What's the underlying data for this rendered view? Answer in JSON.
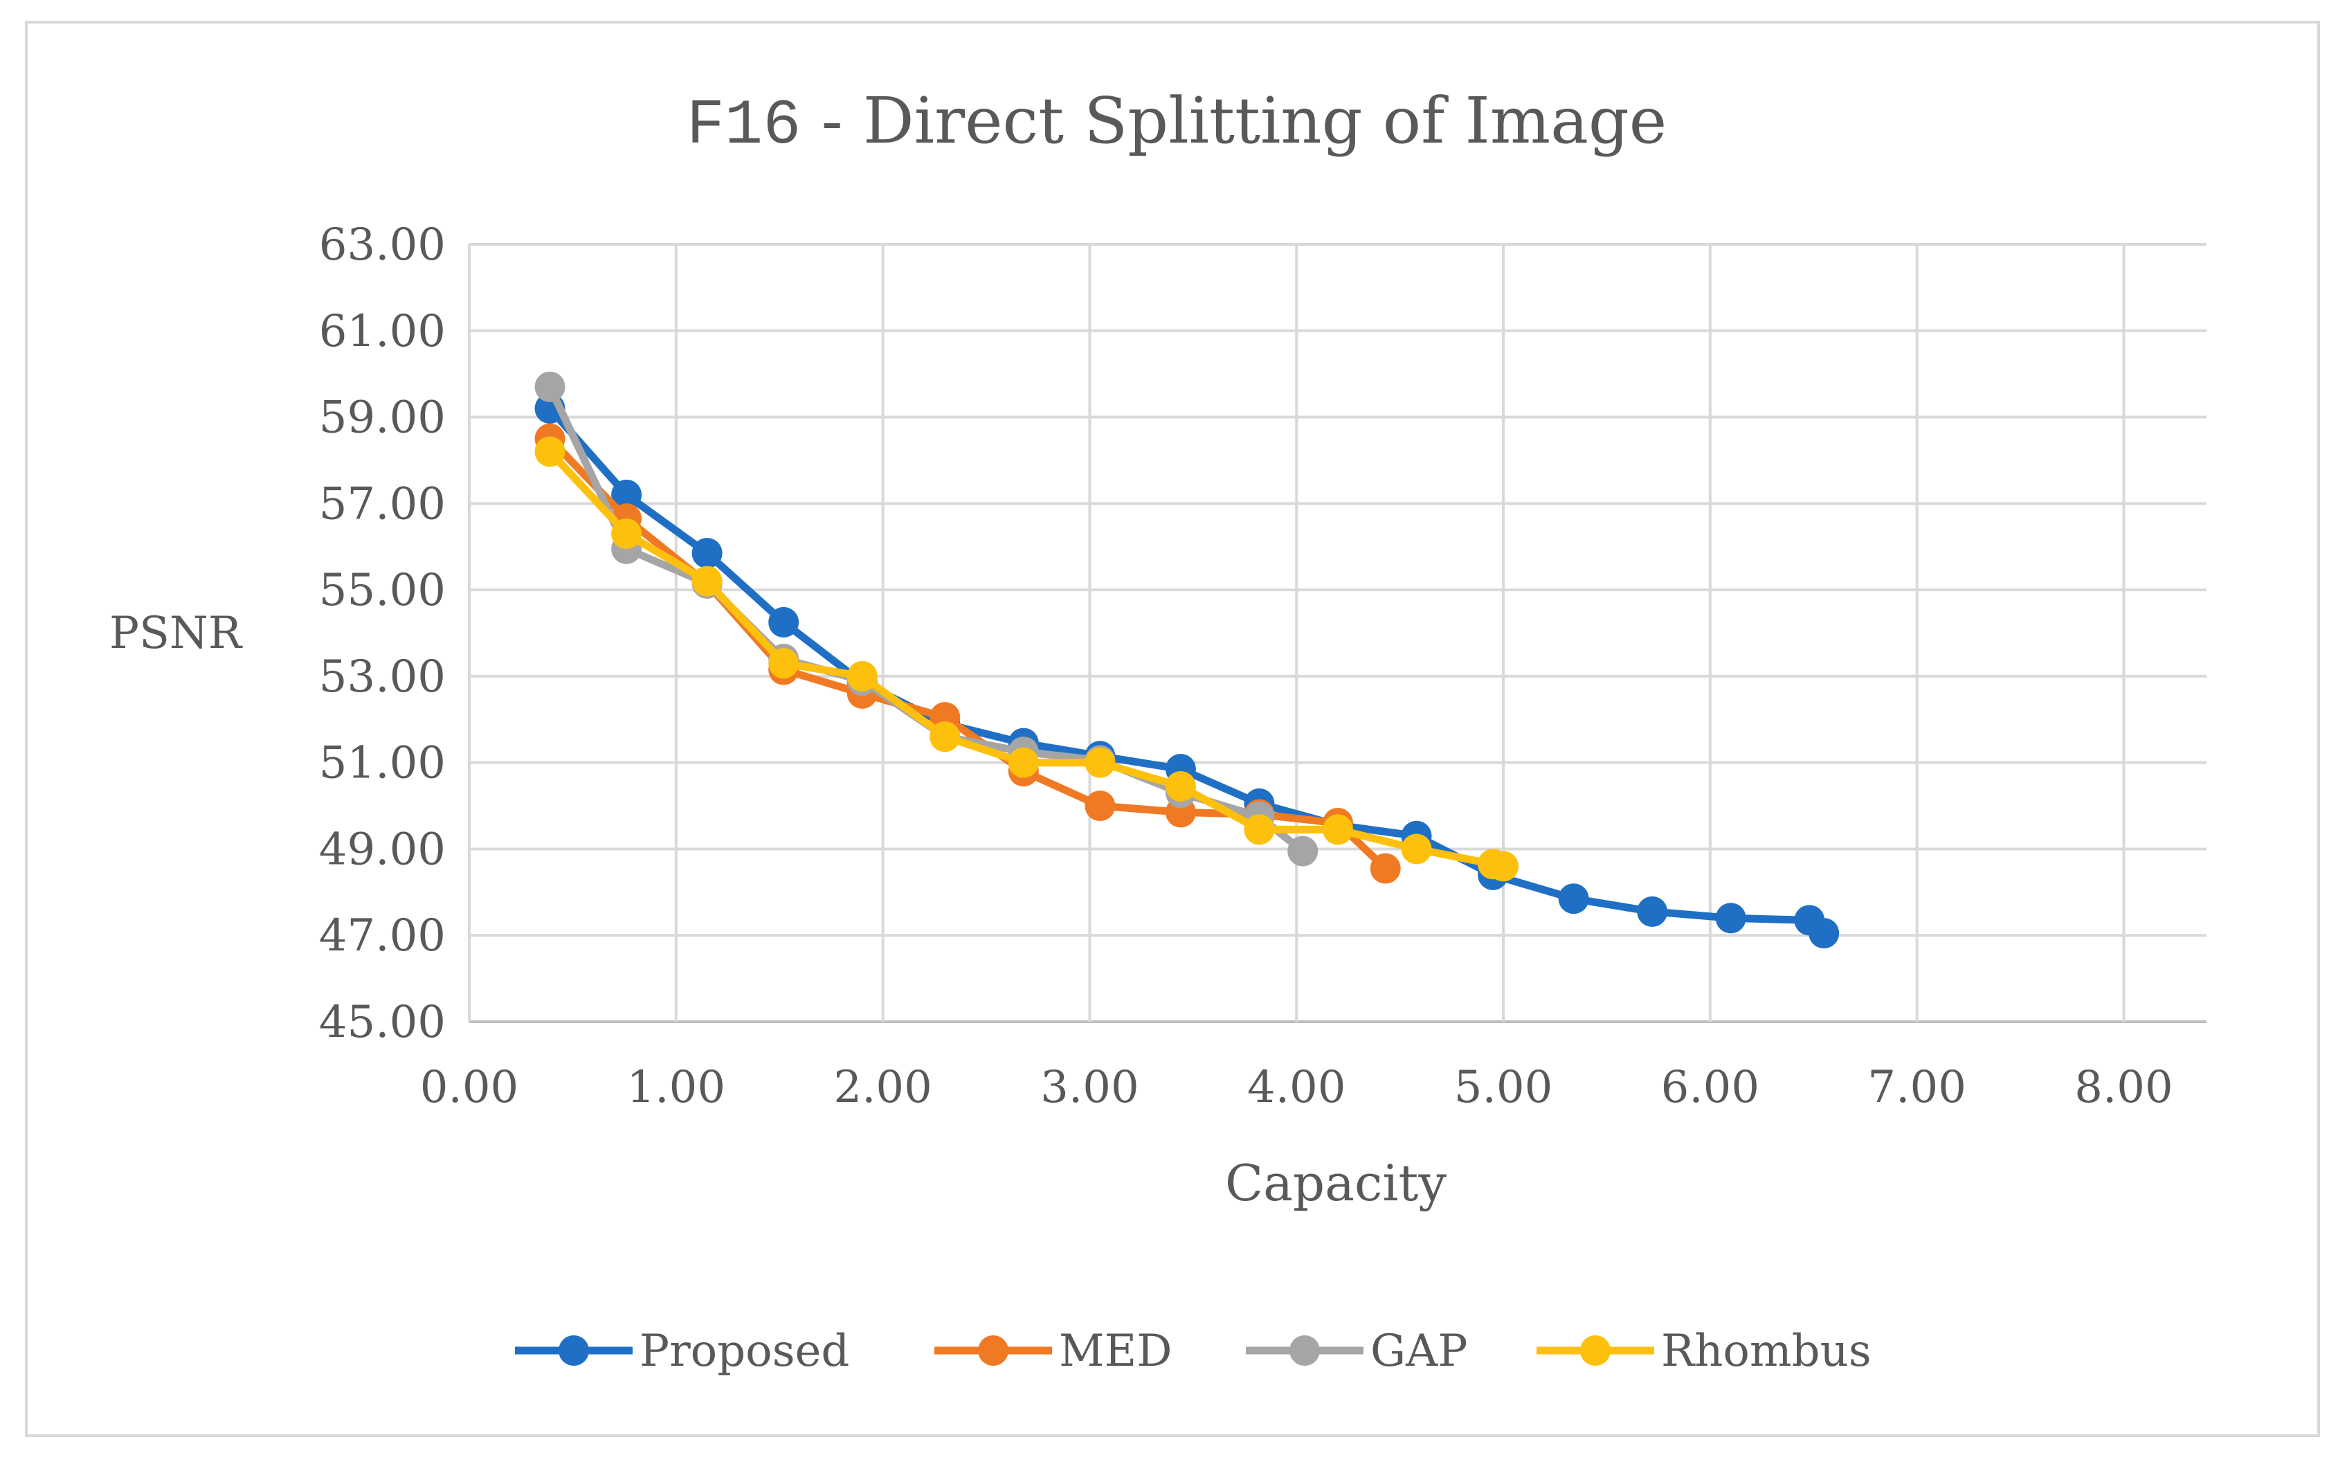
{
  "chart_data": {
    "type": "line",
    "title_prefix": "F16",
    "title_rest": " - Direct Splitting of Image",
    "xlabel": "Capacity",
    "ylabel": "PSNR",
    "xlim": [
      0,
      8.4
    ],
    "ylim": [
      45,
      63
    ],
    "x_ticks": [
      "0.00",
      "1.00",
      "2.00",
      "3.00",
      "4.00",
      "5.00",
      "6.00",
      "7.00",
      "8.00"
    ],
    "y_ticks": [
      "45.00",
      "47.00",
      "49.00",
      "51.00",
      "53.00",
      "55.00",
      "57.00",
      "59.00",
      "61.00",
      "63.00"
    ],
    "grid": true,
    "legend_position": "bottom",
    "series": [
      {
        "name": "Proposed",
        "color": "#1f6fc5",
        "points": [
          [
            0.39,
            59.2
          ],
          [
            0.76,
            57.2
          ],
          [
            1.15,
            55.85
          ],
          [
            1.52,
            54.25
          ],
          [
            1.9,
            52.85
          ],
          [
            2.3,
            51.9
          ],
          [
            2.68,
            51.45
          ],
          [
            3.05,
            51.15
          ],
          [
            3.44,
            50.85
          ],
          [
            3.82,
            50.05
          ],
          [
            4.2,
            49.55
          ],
          [
            4.58,
            49.3
          ],
          [
            4.95,
            48.4
          ],
          [
            5.34,
            47.85
          ],
          [
            5.72,
            47.55
          ],
          [
            6.1,
            47.4
          ],
          [
            6.48,
            47.35
          ],
          [
            6.55,
            47.05
          ]
        ]
      },
      {
        "name": "MED",
        "color": "#f07a24",
        "points": [
          [
            0.39,
            58.5
          ],
          [
            0.76,
            56.65
          ],
          [
            1.15,
            55.15
          ],
          [
            1.52,
            53.15
          ],
          [
            1.9,
            52.6
          ],
          [
            2.3,
            52.05
          ],
          [
            2.68,
            50.8
          ],
          [
            3.05,
            50.0
          ],
          [
            3.44,
            49.85
          ],
          [
            3.82,
            49.8
          ],
          [
            4.2,
            49.6
          ],
          [
            4.43,
            48.55
          ]
        ]
      },
      {
        "name": "GAP",
        "color": "#a5a5a5",
        "points": [
          [
            0.39,
            59.7
          ],
          [
            0.76,
            55.95
          ],
          [
            1.15,
            55.15
          ],
          [
            1.52,
            53.4
          ],
          [
            1.9,
            52.9
          ],
          [
            2.3,
            51.6
          ],
          [
            2.68,
            51.25
          ],
          [
            3.05,
            51.05
          ],
          [
            3.44,
            50.3
          ],
          [
            3.82,
            49.75
          ],
          [
            4.03,
            48.95
          ]
        ]
      },
      {
        "name": "Rhombus",
        "color": "#fdc00c",
        "points": [
          [
            0.39,
            58.2
          ],
          [
            0.76,
            56.3
          ],
          [
            1.15,
            55.2
          ],
          [
            1.52,
            53.3
          ],
          [
            1.9,
            53.0
          ],
          [
            2.3,
            51.6
          ],
          [
            2.68,
            51.0
          ],
          [
            3.05,
            51.0
          ],
          [
            3.44,
            50.45
          ],
          [
            3.82,
            49.45
          ],
          [
            4.2,
            49.45
          ],
          [
            4.58,
            49.0
          ],
          [
            4.95,
            48.65
          ],
          [
            5.0,
            48.6
          ]
        ]
      }
    ]
  }
}
